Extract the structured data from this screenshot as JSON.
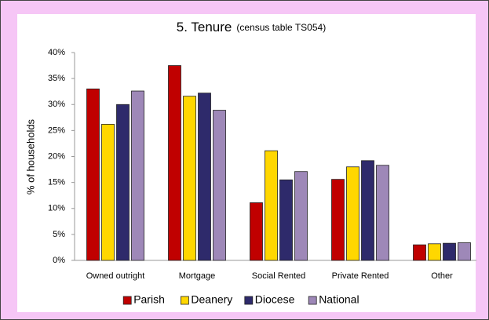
{
  "chart_data": {
    "type": "bar",
    "title": "5. Tenure",
    "subtitle": "(census table TS054)",
    "y_label": "% of households",
    "categories": [
      "Owned outright",
      "Mortgage",
      "Social Rented",
      "Private Rented",
      "Other"
    ],
    "series": [
      {
        "name": "Parish",
        "color": "#c00000",
        "values": [
          33.0,
          37.5,
          11.1,
          15.6,
          3.0
        ]
      },
      {
        "name": "Deanery",
        "color": "#ffd700",
        "values": [
          26.2,
          31.6,
          21.1,
          18.0,
          3.2
        ]
      },
      {
        "name": "Diocese",
        "color": "#2e2a6b",
        "values": [
          30.0,
          32.2,
          15.5,
          19.2,
          3.3
        ]
      },
      {
        "name": "National",
        "color": "#9e88b8",
        "values": [
          32.6,
          28.9,
          17.1,
          18.3,
          3.4
        ]
      }
    ],
    "ylim": [
      0,
      40
    ],
    "yticks": [
      {
        "value": 0,
        "label": "0%"
      },
      {
        "value": 5,
        "label": "5%"
      },
      {
        "value": 10,
        "label": "10%"
      },
      {
        "value": 15,
        "label": "15%"
      },
      {
        "value": 20,
        "label": "20%"
      },
      {
        "value": 25,
        "label": "25%"
      },
      {
        "value": 30,
        "label": "30%"
      },
      {
        "value": 35,
        "label": "35%"
      },
      {
        "value": 40,
        "label": "40%"
      }
    ],
    "legend": "bottom"
  }
}
